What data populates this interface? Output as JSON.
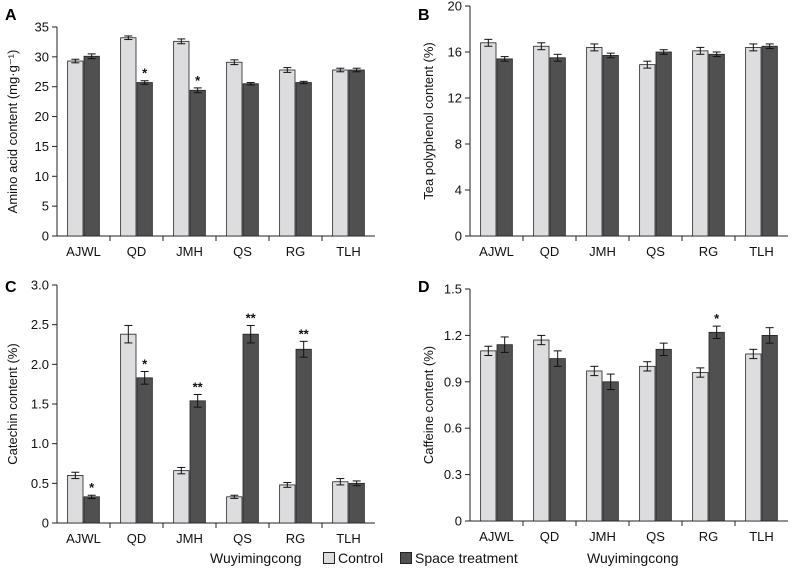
{
  "bottom": {
    "xlabel_left": "Wuyimingcong",
    "xlabel_right": "Wuyimingcong",
    "legend": [
      {
        "label": "Control",
        "color": "#dddde0"
      },
      {
        "label": "Space treatment",
        "color": "#505050"
      }
    ]
  },
  "chart_data": [
    {
      "panel": "A",
      "type": "bar",
      "ylabel": "Amino acid content (mg·g⁻¹)",
      "ylim": [
        0,
        35
      ],
      "yticks": [
        0,
        5,
        10,
        15,
        20,
        25,
        30,
        35
      ],
      "categories": [
        "AJWL",
        "QD",
        "JMH",
        "QS",
        "RG",
        "TLH"
      ],
      "series": [
        {
          "name": "Control",
          "values": [
            29.3,
            33.2,
            32.6,
            29.1,
            27.8,
            27.8
          ],
          "errors": [
            0.3,
            0.3,
            0.4,
            0.4,
            0.4,
            0.3
          ]
        },
        {
          "name": "Space treatment",
          "values": [
            30.1,
            25.7,
            24.4,
            25.5,
            25.7,
            27.8
          ],
          "errors": [
            0.4,
            0.3,
            0.4,
            0.2,
            0.2,
            0.3
          ]
        }
      ],
      "significance": [
        "",
        "*",
        "*",
        "",
        "",
        ""
      ]
    },
    {
      "panel": "B",
      "type": "bar",
      "ylabel": "Tea polyphenol content (%)",
      "ylim": [
        0,
        20
      ],
      "yticks": [
        0,
        4,
        8,
        12,
        16,
        20
      ],
      "categories": [
        "AJWL",
        "QD",
        "JMH",
        "QS",
        "RG",
        "TLH"
      ],
      "series": [
        {
          "name": "Control",
          "values": [
            16.8,
            16.5,
            16.4,
            14.9,
            16.1,
            16.4
          ],
          "errors": [
            0.3,
            0.3,
            0.3,
            0.3,
            0.3,
            0.3
          ]
        },
        {
          "name": "Space treatment",
          "values": [
            15.4,
            15.5,
            15.7,
            16.0,
            15.8,
            16.5
          ],
          "errors": [
            0.2,
            0.3,
            0.2,
            0.2,
            0.2,
            0.2
          ]
        }
      ],
      "significance": [
        "",
        "",
        "",
        "",
        "",
        ""
      ]
    },
    {
      "panel": "C",
      "type": "bar",
      "ylabel": "Catechin content (%)",
      "ylim": [
        0,
        3.0
      ],
      "yticks": [
        "0",
        "0.5",
        "1.0",
        "1.5",
        "2.0",
        "2.5",
        "3.0"
      ],
      "categories": [
        "AJWL",
        "QD",
        "JMH",
        "QS",
        "RG",
        "TLH"
      ],
      "series": [
        {
          "name": "Control",
          "values": [
            0.6,
            2.38,
            0.66,
            0.33,
            0.48,
            0.52
          ],
          "errors": [
            0.04,
            0.11,
            0.04,
            0.02,
            0.03,
            0.04
          ]
        },
        {
          "name": "Space treatment",
          "values": [
            0.33,
            1.83,
            1.54,
            2.38,
            2.19,
            0.5
          ],
          "errors": [
            0.02,
            0.08,
            0.08,
            0.11,
            0.1,
            0.03
          ]
        }
      ],
      "significance": [
        "*",
        "*",
        "**",
        "**",
        "**",
        ""
      ]
    },
    {
      "panel": "D",
      "type": "bar",
      "ylabel": "Caffeine content (%)",
      "ylim": [
        0,
        1.5
      ],
      "yticks": [
        "0",
        "0.3",
        "0.6",
        "0.9",
        "1.2",
        "1.5"
      ],
      "categories": [
        "AJWL",
        "QD",
        "JMH",
        "QS",
        "RG",
        "TLH"
      ],
      "series": [
        {
          "name": "Control",
          "values": [
            1.1,
            1.17,
            0.97,
            1.0,
            0.96,
            1.08
          ],
          "errors": [
            0.03,
            0.03,
            0.03,
            0.03,
            0.03,
            0.03
          ]
        },
        {
          "name": "Space treatment",
          "values": [
            1.14,
            1.05,
            0.9,
            1.11,
            1.22,
            1.2
          ],
          "errors": [
            0.05,
            0.05,
            0.05,
            0.04,
            0.04,
            0.05
          ]
        }
      ],
      "significance": [
        "",
        "",
        "",
        "",
        "*",
        ""
      ]
    }
  ]
}
